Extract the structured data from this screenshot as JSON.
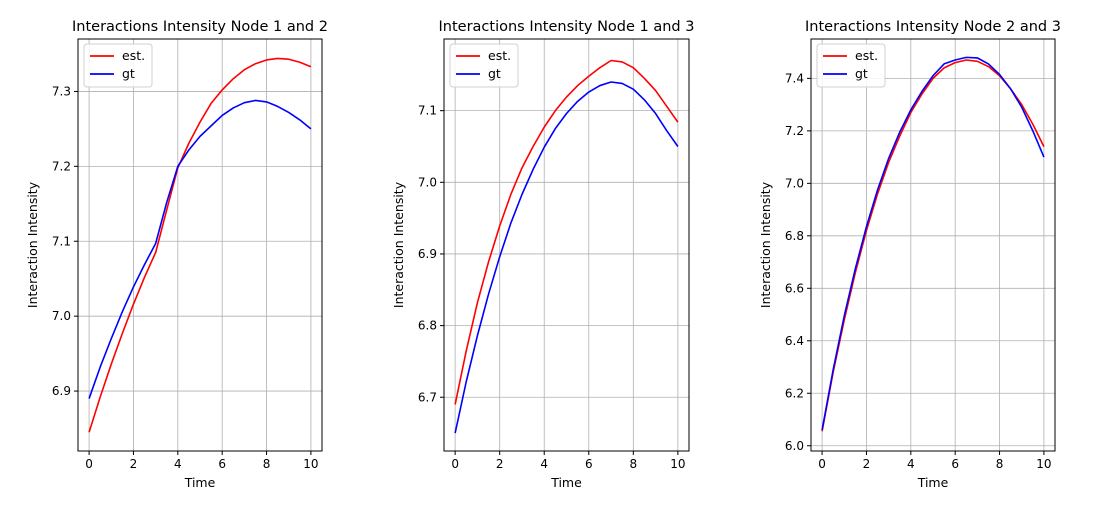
{
  "chart_data": [
    {
      "type": "line",
      "title": "Interactions Intensity Node 1 and 2",
      "xlabel": "Time",
      "ylabel": "Interaction Intensity",
      "xlim": [
        -0.5,
        10.5
      ],
      "ylim": [
        6.82,
        7.37
      ],
      "xticks": [
        0,
        2,
        4,
        6,
        8,
        10
      ],
      "yticks": [
        6.9,
        7.0,
        7.1,
        7.2,
        7.3
      ],
      "grid": true,
      "legend": "top-left",
      "x": [
        0,
        0.5,
        1,
        1.5,
        2,
        2.5,
        3,
        3.5,
        4,
        4.5,
        5,
        5.5,
        6,
        6.5,
        7,
        7.5,
        8,
        8.5,
        9,
        9.5,
        10
      ],
      "series": [
        {
          "name": "est.",
          "color": "#ff0000",
          "values": [
            6.845,
            6.892,
            6.936,
            6.977,
            7.016,
            7.052,
            7.085,
            7.142,
            7.198,
            7.231,
            7.259,
            7.284,
            7.302,
            7.317,
            7.329,
            7.337,
            7.342,
            7.344,
            7.343,
            7.339,
            7.333
          ]
        },
        {
          "name": "gt",
          "color": "#0000ff",
          "values": [
            6.89,
            6.932,
            6.97,
            7.006,
            7.039,
            7.069,
            7.097,
            7.152,
            7.2,
            7.222,
            7.24,
            7.254,
            7.268,
            7.278,
            7.285,
            7.288,
            7.286,
            7.28,
            7.272,
            7.262,
            7.25
          ]
        }
      ]
    },
    {
      "type": "line",
      "title": "Interactions Intensity Node 1 and 3",
      "xlabel": "Time",
      "ylabel": "Interaction Intensity",
      "xlim": [
        -0.5,
        10.5
      ],
      "ylim": [
        6.625,
        7.2
      ],
      "xticks": [
        0,
        2,
        4,
        6,
        8,
        10
      ],
      "yticks": [
        6.7,
        6.8,
        6.9,
        7.0,
        7.1
      ],
      "grid": true,
      "legend": "top-left",
      "x": [
        0,
        0.5,
        1,
        1.5,
        2,
        2.5,
        3,
        3.5,
        4,
        4.5,
        5,
        5.5,
        6,
        6.5,
        7,
        7.5,
        8,
        8.5,
        9,
        9.5,
        10
      ],
      "series": [
        {
          "name": "est.",
          "color": "#ff0000",
          "values": [
            6.69,
            6.765,
            6.832,
            6.889,
            6.939,
            6.983,
            7.02,
            7.05,
            7.077,
            7.1,
            7.119,
            7.135,
            7.148,
            7.16,
            7.17,
            7.168,
            7.16,
            7.145,
            7.128,
            7.106,
            7.084
          ]
        },
        {
          "name": "gt",
          "color": "#0000ff",
          "values": [
            6.65,
            6.722,
            6.786,
            6.844,
            6.896,
            6.943,
            6.983,
            7.018,
            7.049,
            7.075,
            7.096,
            7.113,
            7.126,
            7.135,
            7.14,
            7.138,
            7.13,
            7.115,
            7.096,
            7.072,
            7.05
          ]
        }
      ]
    },
    {
      "type": "line",
      "title": "Interactions Intensity Node 2 and 3",
      "xlabel": "Time",
      "ylabel": "Interaction Intensity",
      "xlim": [
        -0.5,
        10.5
      ],
      "ylim": [
        5.98,
        7.55
      ],
      "xticks": [
        0,
        2,
        4,
        6,
        8,
        10
      ],
      "yticks": [
        6.0,
        6.2,
        6.4,
        6.6,
        6.8,
        7.0,
        7.2,
        7.4
      ],
      "grid": true,
      "legend": "top-left",
      "x": [
        0,
        0.5,
        1,
        1.5,
        2,
        2.5,
        3,
        3.5,
        4,
        4.5,
        5,
        5.5,
        6,
        6.5,
        7,
        7.5,
        8,
        8.5,
        9,
        9.5,
        10
      ],
      "series": [
        {
          "name": "est.",
          "color": "#ff0000",
          "values": [
            6.055,
            6.28,
            6.48,
            6.66,
            6.82,
            6.96,
            7.08,
            7.18,
            7.27,
            7.34,
            7.4,
            7.44,
            7.46,
            7.47,
            7.465,
            7.445,
            7.41,
            7.36,
            7.3,
            7.225,
            7.14
          ]
        },
        {
          "name": "gt",
          "color": "#0000ff",
          "values": [
            6.06,
            6.29,
            6.495,
            6.675,
            6.835,
            6.975,
            7.095,
            7.195,
            7.28,
            7.35,
            7.41,
            7.455,
            7.47,
            7.48,
            7.478,
            7.455,
            7.415,
            7.36,
            7.29,
            7.2,
            7.1
          ]
        }
      ]
    }
  ]
}
